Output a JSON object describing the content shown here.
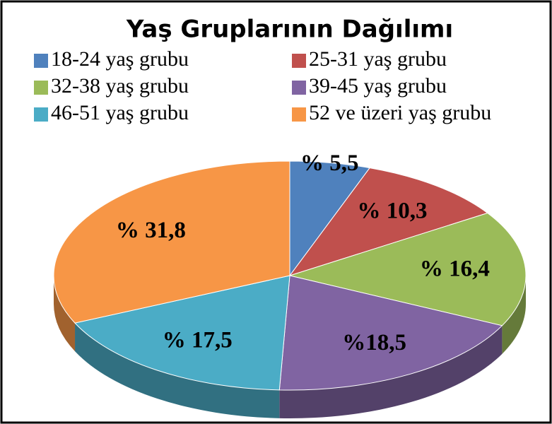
{
  "chart_data": {
    "type": "pie",
    "title": "Yaş Gruplarının Dağılımı",
    "categories": [
      "18-24 yaş grubu",
      "25-31 yaş grubu",
      "32-38 yaş grubu",
      "39-45 yaş grubu",
      "46-51 yaş grubu",
      "52 ve üzeri yaş grubu"
    ],
    "values": [
      5.5,
      10.3,
      16.4,
      18.5,
      17.5,
      31.8
    ],
    "value_labels": [
      "% 5,5",
      "% 10,3",
      "% 16,4",
      "%18,5",
      "% 17,5",
      "% 31,8"
    ],
    "colors": [
      "#4f81bd",
      "#c0504d",
      "#9bbb59",
      "#8064a2",
      "#4bacc6",
      "#f79646"
    ]
  }
}
